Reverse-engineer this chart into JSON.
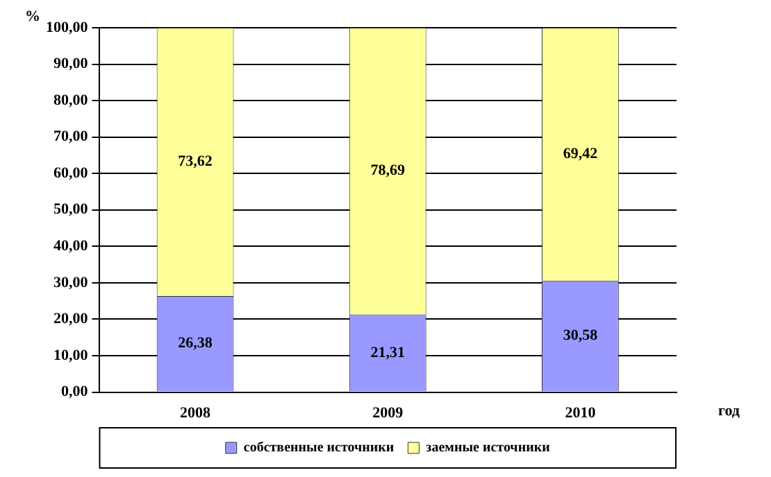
{
  "chart_data": {
    "type": "bar",
    "stacked": true,
    "ylabel": "%",
    "xlabel": "год",
    "categories": [
      "2008",
      "2009",
      "2010"
    ],
    "series": [
      {
        "name": "собственные источники",
        "color": "#9999ff",
        "values": [
          26.38,
          21.31,
          30.58
        ],
        "value_labels": [
          "26,38",
          "21,31",
          "30,58"
        ]
      },
      {
        "name": "заемные источники",
        "color": "#ffff99",
        "values": [
          73.62,
          78.69,
          69.42
        ],
        "value_labels": [
          "73,62",
          "78,69",
          "69,42"
        ]
      }
    ],
    "ylim": [
      0,
      100
    ],
    "yticks": [
      {
        "value": 0,
        "label": "0,00"
      },
      {
        "value": 10,
        "label": "10,00"
      },
      {
        "value": 20,
        "label": "20,00"
      },
      {
        "value": 30,
        "label": "30,00"
      },
      {
        "value": 40,
        "label": "40,00"
      },
      {
        "value": 50,
        "label": "50,00"
      },
      {
        "value": 60,
        "label": "60,00"
      },
      {
        "value": 70,
        "label": "70,00"
      },
      {
        "value": 80,
        "label": "80,00"
      },
      {
        "value": 90,
        "label": "90,00"
      },
      {
        "value": 100,
        "label": "100,00"
      }
    ],
    "grid": "y",
    "legend": "bottom"
  }
}
